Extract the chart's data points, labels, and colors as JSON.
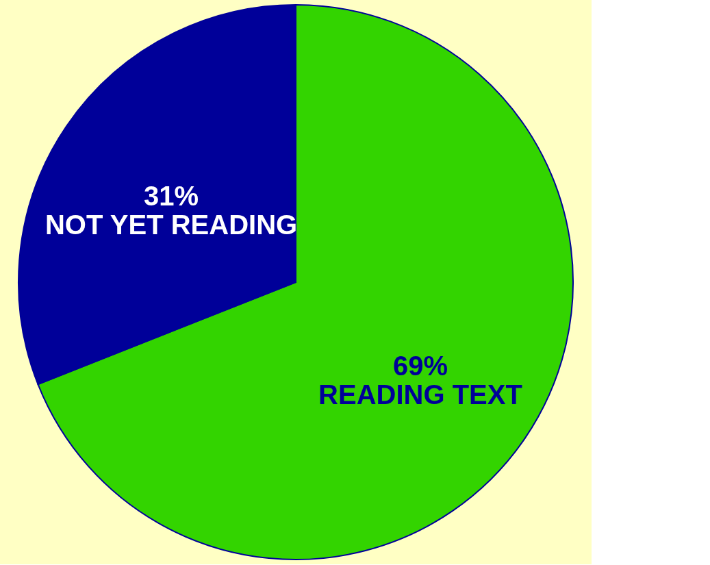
{
  "chart_data": {
    "type": "pie",
    "categories": [
      "READING TEXT",
      "NOT YET READING"
    ],
    "values": [
      69,
      31
    ],
    "value_labels": [
      "69%",
      "31%"
    ],
    "colors": [
      "#33d400",
      "#000099"
    ],
    "legend": false
  }
}
